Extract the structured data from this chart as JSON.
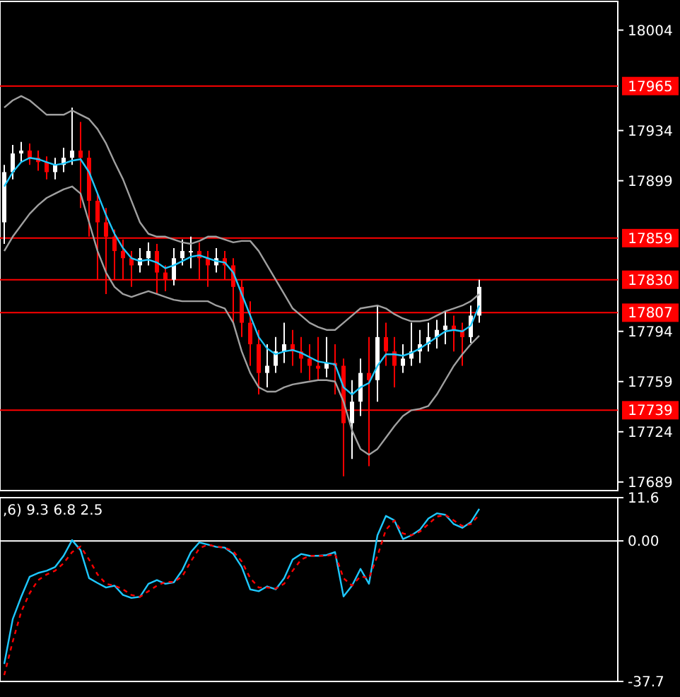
{
  "chart_data": [
    {
      "type": "candlestick",
      "categories": [
        null,
        null,
        null,
        null,
        null,
        null,
        null,
        null,
        null,
        null,
        null,
        null,
        null,
        null,
        null,
        null,
        null,
        null,
        null,
        null,
        null,
        null,
        null,
        null,
        null,
        null,
        null,
        null,
        null,
        null,
        null,
        null,
        null,
        null,
        null,
        null,
        null,
        null,
        null,
        null,
        null,
        null,
        null,
        null,
        null,
        null,
        null,
        null,
        null,
        null,
        null,
        null,
        null,
        null,
        null,
        null,
        null
      ],
      "ohlc": [
        [
          17870,
          17910,
          17855,
          17905
        ],
        [
          17905,
          17924,
          17900,
          17918
        ],
        [
          17918,
          17926,
          17912,
          17920
        ],
        [
          17920,
          17925,
          17910,
          17915
        ],
        [
          17915,
          17920,
          17906,
          17912
        ],
        [
          17912,
          17916,
          17900,
          17905
        ],
        [
          17905,
          17915,
          17900,
          17910
        ],
        [
          17910,
          17922,
          17905,
          17915
        ],
        [
          17915,
          17950,
          17910,
          17920
        ],
        [
          17920,
          17940,
          17880,
          17915
        ],
        [
          17915,
          17920,
          17860,
          17885
        ],
        [
          17885,
          17890,
          17830,
          17870
        ],
        [
          17870,
          17880,
          17820,
          17860
        ],
        [
          17860,
          17865,
          17830,
          17850
        ],
        [
          17850,
          17858,
          17830,
          17845
        ],
        [
          17845,
          17850,
          17825,
          17840
        ],
        [
          17840,
          17852,
          17835,
          17845
        ],
        [
          17845,
          17856,
          17840,
          17850
        ],
        [
          17850,
          17855,
          17820,
          17835
        ],
        [
          17835,
          17840,
          17822,
          17830
        ],
        [
          17830,
          17852,
          17826,
          17845
        ],
        [
          17845,
          17858,
          17840,
          17850
        ],
        [
          17850,
          17860,
          17838,
          17850
        ],
        [
          17850,
          17856,
          17830,
          17845
        ],
        [
          17845,
          17850,
          17825,
          17840
        ],
        [
          17840,
          17852,
          17835,
          17845
        ],
        [
          17845,
          17850,
          17830,
          17840
        ],
        [
          17840,
          17845,
          17800,
          17825
        ],
        [
          17825,
          17830,
          17790,
          17800
        ],
        [
          17800,
          17815,
          17770,
          17785
        ],
        [
          17785,
          17795,
          17750,
          17765
        ],
        [
          17765,
          17785,
          17755,
          17770
        ],
        [
          17770,
          17790,
          17765,
          17780
        ],
        [
          17780,
          17800,
          17772,
          17785
        ],
        [
          17785,
          17795,
          17770,
          17780
        ],
        [
          17780,
          17790,
          17765,
          17775
        ],
        [
          17775,
          17785,
          17760,
          17770
        ],
        [
          17770,
          17790,
          17760,
          17768
        ],
        [
          17768,
          17790,
          17762,
          17772
        ],
        [
          17772,
          17785,
          17750,
          17770
        ],
        [
          17770,
          17775,
          17693,
          17730
        ],
        [
          17730,
          17760,
          17705,
          17745
        ],
        [
          17745,
          17775,
          17735,
          17765
        ],
        [
          17765,
          17790,
          17700,
          17760
        ],
        [
          17760,
          17812,
          17745,
          17790
        ],
        [
          17790,
          17800,
          17770,
          17780
        ],
        [
          17780,
          17790,
          17755,
          17770
        ],
        [
          17770,
          17785,
          17765,
          17775
        ],
        [
          17775,
          17800,
          17770,
          17780
        ],
        [
          17780,
          17795,
          17772,
          17785
        ],
        [
          17785,
          17800,
          17780,
          17790
        ],
        [
          17790,
          17802,
          17782,
          17795
        ],
        [
          17795,
          17808,
          17785,
          17798
        ],
        [
          17798,
          17805,
          17780,
          17795
        ],
        [
          17795,
          17800,
          17770,
          17790
        ],
        [
          17790,
          17812,
          17786,
          17805
        ],
        [
          17805,
          17830,
          17800,
          17825
        ]
      ],
      "colors": [
        "#ffffff",
        "#ffffff",
        "#ffffff",
        "#ff0000",
        "#ff0000",
        "#ff0000",
        "#ffffff",
        "#ffffff",
        "#ffffff",
        "#ff0000",
        "#ff0000",
        "#ff0000",
        "#ff0000",
        "#ff0000",
        "#ff0000",
        "#ff0000",
        "#ffffff",
        "#ffffff",
        "#ff0000",
        "#ff0000",
        "#ffffff",
        "#ffffff",
        "#ffffff",
        "#ff0000",
        "#ff0000",
        "#ffffff",
        "#ff0000",
        "#ff0000",
        "#ff0000",
        "#ff0000",
        "#ff0000",
        "#ffffff",
        "#ffffff",
        "#ffffff",
        "#ff0000",
        "#ff0000",
        "#ff0000",
        "#ff0000",
        "#ffffff",
        "#ff0000",
        "#ff0000",
        "#ffffff",
        "#ffffff",
        "#ff0000",
        "#ffffff",
        "#ff0000",
        "#ff0000",
        "#ffffff",
        "#ffffff",
        "#ffffff",
        "#ffffff",
        "#ffffff",
        "#ffffff",
        "#ff0000",
        "#ff0000",
        "#ffffff",
        "#ffffff"
      ],
      "series": [
        {
          "type": "line",
          "color": "#a0a0a0",
          "values": [
            17950,
            17955,
            17958,
            17955,
            17950,
            17945,
            17945,
            17945,
            17948,
            17945,
            17942,
            17935,
            17925,
            17912,
            17900,
            17885,
            17870,
            17862,
            17860,
            17860,
            17858,
            17856,
            17855,
            17857,
            17860,
            17860,
            17858,
            17856,
            17857,
            17857,
            17850,
            17840,
            17830,
            17820,
            17810,
            17805,
            17800,
            17797,
            17795,
            17795,
            17800,
            17805,
            17810,
            17811,
            17812,
            17810,
            17806,
            17803,
            17801,
            17801,
            17802,
            17805,
            17808,
            17810,
            17812,
            17815,
            17820
          ]
        },
        {
          "type": "line",
          "color": "#a0a0a0",
          "values": [
            17850,
            17860,
            17868,
            17876,
            17882,
            17887,
            17890,
            17893,
            17895,
            17890,
            17870,
            17850,
            17835,
            17825,
            17820,
            17818,
            17820,
            17822,
            17820,
            17818,
            17816,
            17815,
            17815,
            17815,
            17815,
            17812,
            17810,
            17800,
            17780,
            17765,
            17755,
            17752,
            17752,
            17755,
            17757,
            17758,
            17759,
            17760,
            17760,
            17759,
            17745,
            17725,
            17712,
            17708,
            17712,
            17720,
            17728,
            17735,
            17739,
            17740,
            17742,
            17750,
            17760,
            17770,
            17778,
            17785,
            17791
          ]
        },
        {
          "type": "line",
          "color": "#1ec8ff",
          "values": [
            17895,
            17905,
            17912,
            17915,
            17914,
            17912,
            17910,
            17911,
            17913,
            17914,
            17905,
            17890,
            17875,
            17862,
            17852,
            17845,
            17843,
            17844,
            17842,
            17838,
            17840,
            17843,
            17846,
            17847,
            17845,
            17843,
            17842,
            17835,
            17820,
            17805,
            17790,
            17782,
            17778,
            17780,
            17781,
            17779,
            17776,
            17773,
            17772,
            17771,
            17755,
            17750,
            17755,
            17758,
            17770,
            17778,
            17778,
            17777,
            17779,
            17782,
            17786,
            17790,
            17794,
            17795,
            17794,
            17798,
            17812
          ]
        }
      ],
      "ylim": [
        17683,
        18024
      ],
      "yticks": [
        18004,
        17934,
        17899,
        17794,
        17759,
        17724,
        17689
      ],
      "ref_lines": [
        {
          "axis": "y",
          "value": 17965,
          "label": "17965",
          "color": "#ff0000"
        },
        {
          "axis": "y",
          "value": 17859,
          "label": "17859",
          "color": "#ff0000"
        },
        {
          "axis": "y",
          "value": 17830,
          "label": "17830",
          "color": "#ff0000"
        },
        {
          "axis": "y",
          "value": 17807,
          "label": "17807",
          "color": "#ff0000"
        },
        {
          "axis": "y",
          "value": 17739,
          "label": "17739",
          "color": "#ff0000"
        }
      ]
    },
    {
      "type": "line",
      "title": ",6) 9.3 6.8 2.5",
      "categories": [
        null,
        null,
        null,
        null,
        null,
        null,
        null,
        null,
        null,
        null,
        null,
        null,
        null,
        null,
        null,
        null,
        null,
        null,
        null,
        null,
        null,
        null,
        null,
        null,
        null,
        null,
        null,
        null,
        null,
        null,
        null,
        null,
        null,
        null,
        null,
        null,
        null,
        null,
        null,
        null,
        null,
        null,
        null,
        null,
        null,
        null,
        null,
        null,
        null,
        null,
        null,
        null,
        null,
        null,
        null,
        null,
        null
      ],
      "series": [
        {
          "color": "#1ec8ff",
          "line_style": "solid",
          "values": [
            -33,
            -21,
            -15,
            -9.6,
            -8.6,
            -8,
            -7,
            -4,
            0.2,
            -2.5,
            -10,
            -11.3,
            -12.5,
            -12,
            -14.5,
            -15.3,
            -15,
            -11.5,
            -10.5,
            -11.5,
            -11.1,
            -7.8,
            -3,
            -0.4,
            -1,
            -1.6,
            -1.8,
            -3.5,
            -7,
            -13,
            -13.5,
            -12.2,
            -13,
            -10,
            -5,
            -3.5,
            -4,
            -4,
            -3.8,
            -3,
            -14.9,
            -12,
            -7.5,
            -11.5,
            1.5,
            6.7,
            5.5,
            0.5,
            1.5,
            3,
            6,
            7.4,
            7,
            4.5,
            3.5,
            5,
            8.6
          ]
        },
        {
          "color": "#ff0000",
          "line_style": "dashed",
          "values": [
            -36,
            -27,
            -19,
            -14,
            -10.5,
            -9,
            -8,
            -6,
            -3,
            -1.5,
            -5,
            -9,
            -11.5,
            -12,
            -13,
            -14.5,
            -15,
            -13.5,
            -12,
            -11,
            -11,
            -9.5,
            -5.5,
            -2,
            -1,
            -1.5,
            -1.8,
            -2.8,
            -5.5,
            -10,
            -12.5,
            -12.5,
            -12.8,
            -11.5,
            -8,
            -5,
            -4,
            -4,
            -4,
            -3.5,
            -10,
            -12,
            -9.5,
            -10,
            -4,
            3,
            5.5,
            2,
            1.5,
            2.5,
            4.5,
            6.5,
            7,
            5.5,
            4,
            4.5,
            7
          ]
        }
      ],
      "ylim": [
        -37.7,
        11.6
      ],
      "yticks": [
        11.6,
        {
          "value": 0,
          "label": "0.00"
        },
        -37.7
      ],
      "ref_lines": [
        {
          "axis": "y",
          "value": 0,
          "color": "#ffffff"
        }
      ]
    }
  ]
}
